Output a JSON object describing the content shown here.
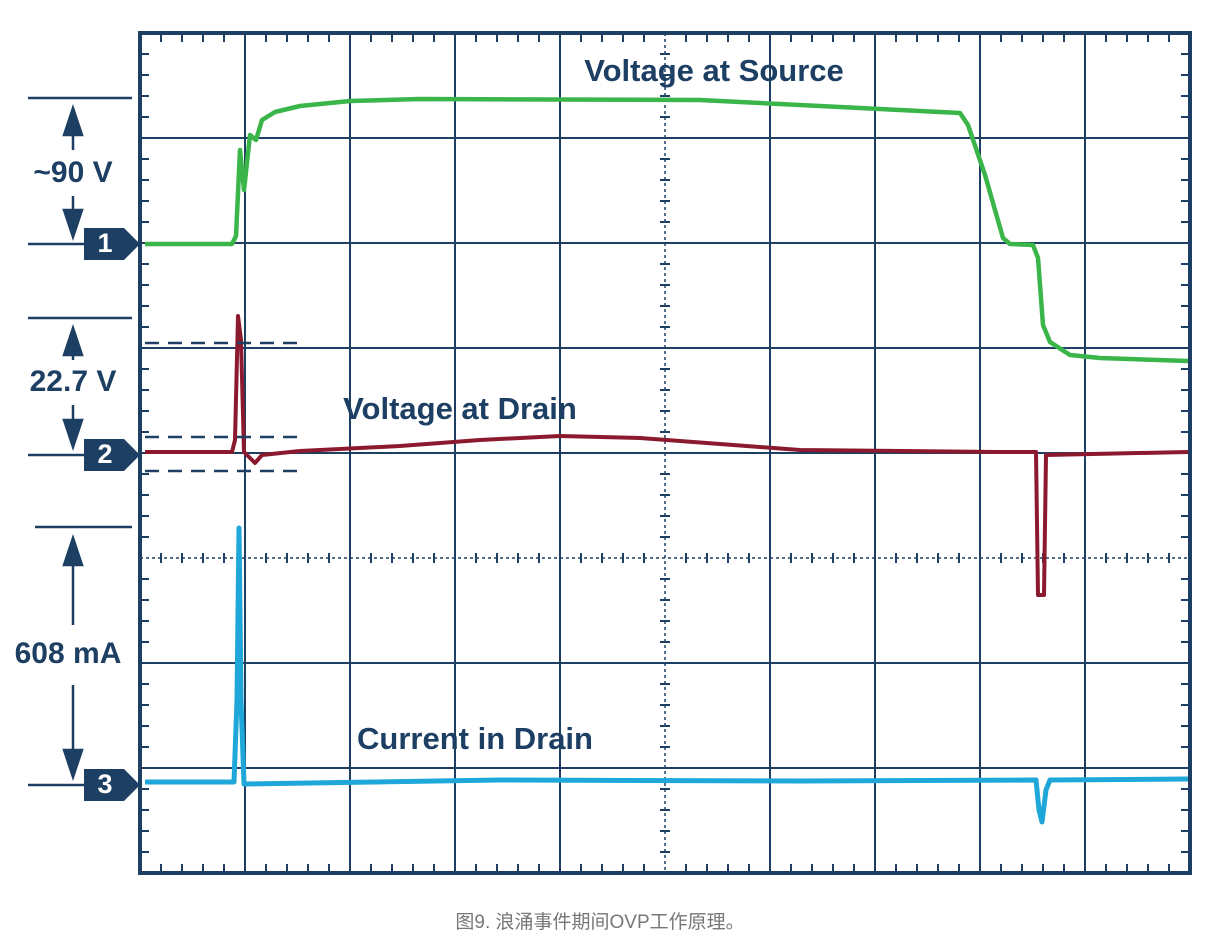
{
  "annotations": {
    "source": "Voltage at Source",
    "drain": "Voltage at Drain",
    "current": "Current in Drain"
  },
  "scales": {
    "ch1": "~90 V",
    "ch2": "22.7 V",
    "ch3": "608 mA"
  },
  "channels": [
    "1",
    "2",
    "3"
  ],
  "caption": "图9. 浪涌事件期间OVP工作原理。"
}
